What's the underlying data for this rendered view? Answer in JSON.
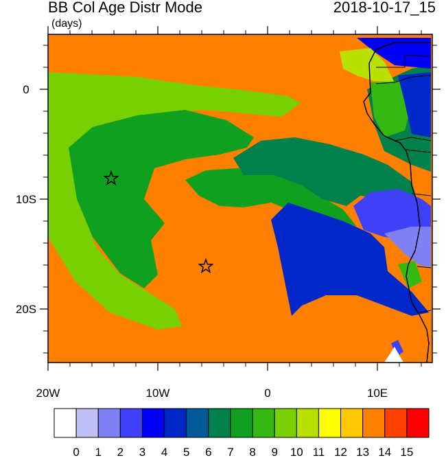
{
  "title": "BB Col Age Distr Mode",
  "timestamp": "2018-10-17_15",
  "units": "(days)",
  "lat_labels": [
    "0",
    "10S",
    "20S"
  ],
  "lon_labels": [
    "20W",
    "10W",
    "0",
    "10E"
  ],
  "colorbar": {
    "labels": [
      "0",
      "1",
      "2",
      "3",
      "4",
      "5",
      "6",
      "7",
      "8",
      "9",
      "10",
      "11",
      "12",
      "13",
      "14",
      "15"
    ],
    "colors": [
      "#ffffff",
      "#bfbff7",
      "#8080f5",
      "#4040f7",
      "#0000f5",
      "#0028c8",
      "#005a9a",
      "#00804a",
      "#0fa020",
      "#35b812",
      "#78d000",
      "#b8e000",
      "#ffff00",
      "#ffc800",
      "#ff8000",
      "#ff4000",
      "#ff0000"
    ]
  },
  "markers": [
    "star",
    "star"
  ]
}
